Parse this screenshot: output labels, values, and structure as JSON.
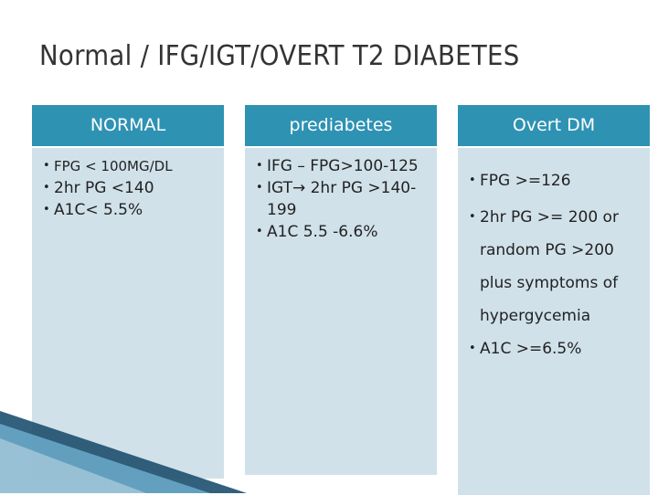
{
  "title": "Normal / IFG/IGT/OVERT T2 DIABETES",
  "columns": [
    {
      "header": "NORMAL",
      "items": [
        "FPG < 100MG/DL",
        "2hr PG <140",
        "A1C< 5.5%"
      ]
    },
    {
      "header": "prediabetes",
      "items": [
        "IFG – FPG>100-125",
        "IGT→ 2hr PG >140-199",
        "A1C 5.5 -6.6%"
      ]
    },
    {
      "header": "Overt DM",
      "items": [
        "FPG >=126",
        "2hr PG >= 200 or random PG >200 plus symptoms of hypergycemia",
        "A1C >=6.5%"
      ]
    }
  ],
  "colors": {
    "header_bg": "#2e92b3",
    "body_bg": "#d0e1ea",
    "title_text": "#333333",
    "deco_dark": "#1d4f6e",
    "deco_light": "#6fb0d0"
  }
}
